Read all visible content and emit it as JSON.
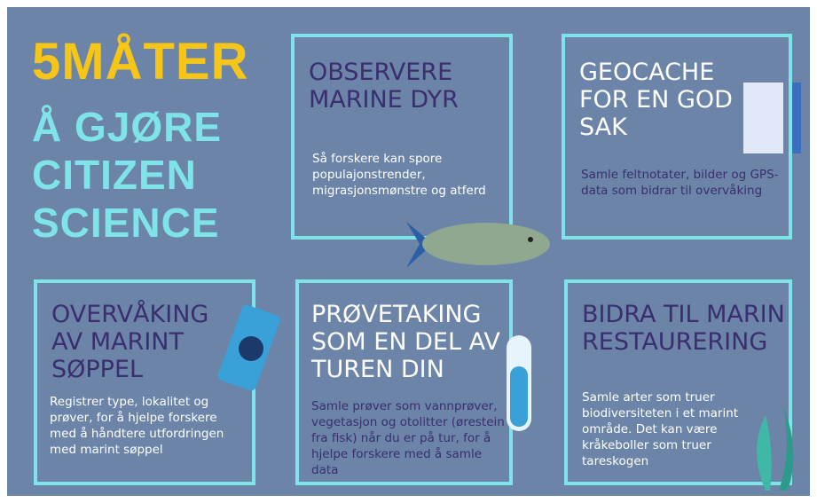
{
  "header": {
    "line1": "5MÅTER",
    "line2": "Å GJØRE",
    "line3": "CITIZEN",
    "line4": "SCIENCE"
  },
  "cards": [
    {
      "title": "OBSERVERE MARINE DYR",
      "text": "Så forskere kan spore populajonstrender, migrasjonsmønstre og atferd"
    },
    {
      "title": "GEOCACHE FOR EN GOD SAK",
      "text": "Samle feltnotater, bilder og GPS-data som bidrar til overvåking"
    },
    {
      "title": "OVERVÅKING AV MARINT SØPPEL",
      "text": "Registrer type, lokalitet og prøver,  for å hjelpe forskere med å håndtere utfordringen med marint søppel"
    },
    {
      "title": "PRØVETAKING SOM EN DEL AV TUREN DIN",
      "text": "Samle prøver som vannprøver, vegetasjon og otolitter (ørestein fra fisk) når du er på tur, for å hjelpe forskere med å samle data"
    },
    {
      "title": "BIDRA TIL MARIN RESTAURERING",
      "text": "Samle arter som truer biodiversiteten i et marint område. Det kan være kråkeboller som truer tareskogen"
    }
  ]
}
